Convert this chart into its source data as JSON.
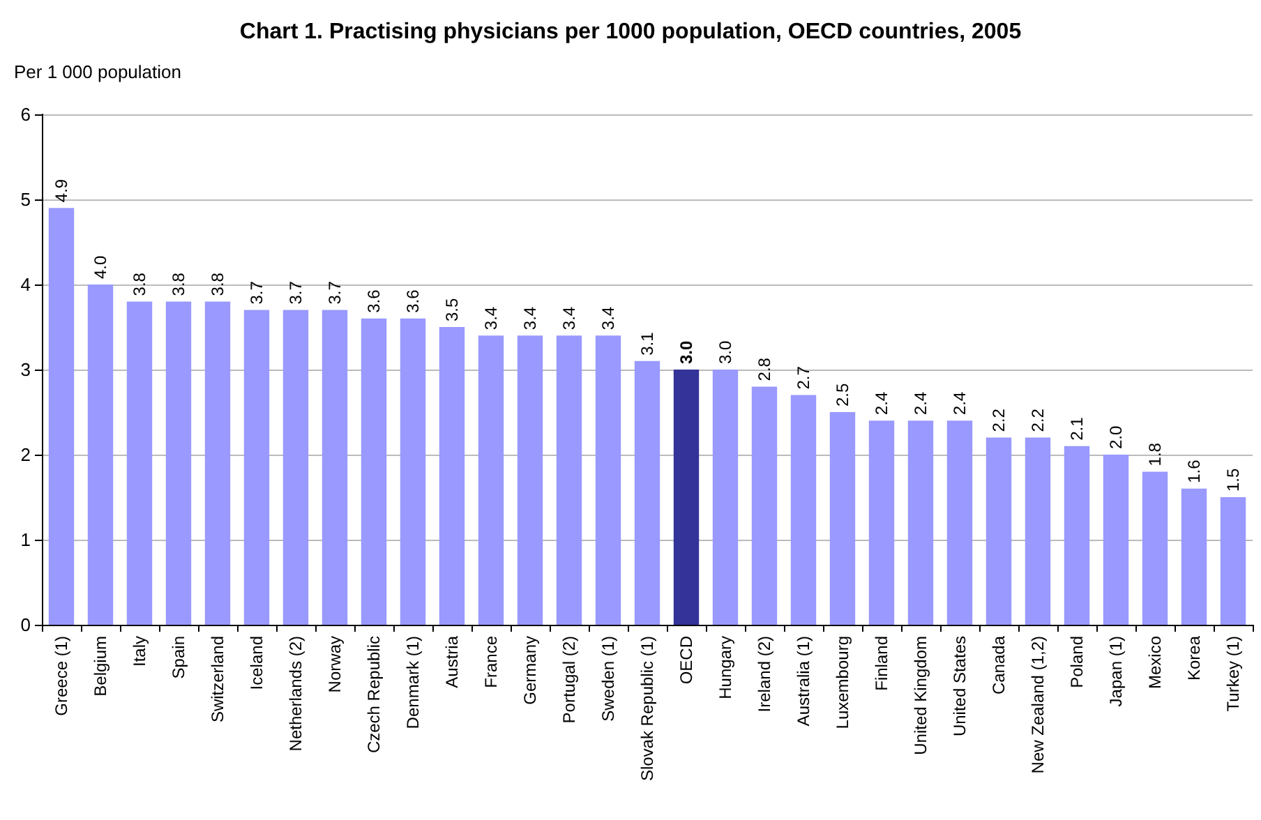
{
  "chart_data": {
    "type": "bar",
    "title": "Chart 1. Practising physicians per 1000 population, OECD countries, 2005",
    "ylabel": "Per 1 000 population",
    "categories": [
      "Greece (1)",
      "Belgium",
      "Italy",
      "Spain",
      "Switzerland",
      "Iceland",
      "Netherlands (2)",
      "Norway",
      "Czech Republic",
      "Denmark (1)",
      "Austria",
      "France",
      "Germany",
      "Portugal (2)",
      "Sweden (1)",
      "Slovak Republic (1)",
      "OECD",
      "Hungary",
      "Ireland (2)",
      "Australia (1)",
      "Luxembourg",
      "Finland",
      "United Kingdom",
      "United States",
      "Canada",
      "New Zealand (1,2)",
      "Poland",
      "Japan (1)",
      "Mexico",
      "Korea",
      "Turkey (1)"
    ],
    "values": [
      4.9,
      4.0,
      3.8,
      3.8,
      3.8,
      3.7,
      3.7,
      3.7,
      3.6,
      3.6,
      3.5,
      3.4,
      3.4,
      3.4,
      3.4,
      3.1,
      3.0,
      3.0,
      2.8,
      2.7,
      2.5,
      2.4,
      2.4,
      2.4,
      2.2,
      2.2,
      2.1,
      2.0,
      1.8,
      1.6,
      1.5
    ],
    "value_labels": [
      "4.9",
      "4.0",
      "3.8",
      "3.8",
      "3.8",
      "3.7",
      "3.7",
      "3.7",
      "3.6",
      "3.6",
      "3.5",
      "3.4",
      "3.4",
      "3.4",
      "3.4",
      "3.1",
      "3.0",
      "3.0",
      "2.8",
      "2.7",
      "2.5",
      "2.4",
      "2.4",
      "2.4",
      "2.2",
      "2.2",
      "2.1",
      "2.0",
      "1.8",
      "1.6",
      "1.5"
    ],
    "colors": [
      "#9999ff",
      "#9999ff",
      "#9999ff",
      "#9999ff",
      "#9999ff",
      "#9999ff",
      "#9999ff",
      "#9999ff",
      "#9999ff",
      "#9999ff",
      "#9999ff",
      "#9999ff",
      "#9999ff",
      "#9999ff",
      "#9999ff",
      "#9999ff",
      "#333399",
      "#9999ff",
      "#9999ff",
      "#9999ff",
      "#9999ff",
      "#9999ff",
      "#9999ff",
      "#9999ff",
      "#9999ff",
      "#9999ff",
      "#9999ff",
      "#9999ff",
      "#9999ff",
      "#9999ff",
      "#9999ff"
    ],
    "ylim": [
      0,
      6
    ],
    "yticks": [
      0,
      1,
      2,
      3,
      4,
      5,
      6
    ],
    "grid": "y"
  }
}
